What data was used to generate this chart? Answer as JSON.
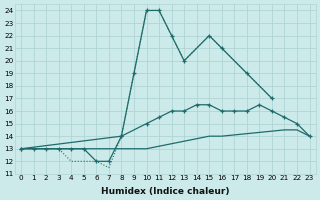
{
  "xlabel": "Humidex (Indice chaleur)",
  "xlim": [
    -0.5,
    23.5
  ],
  "ylim": [
    11,
    24.5
  ],
  "yticks": [
    11,
    12,
    13,
    14,
    15,
    16,
    17,
    18,
    19,
    20,
    21,
    22,
    23,
    24
  ],
  "xticks": [
    0,
    1,
    2,
    3,
    4,
    5,
    6,
    7,
    8,
    9,
    10,
    11,
    12,
    13,
    14,
    15,
    16,
    17,
    18,
    19,
    20,
    21,
    22,
    23
  ],
  "bg_color": "#cdeaea",
  "grid_color": "#b0d4d4",
  "line_color": "#1e6b6b",
  "series1_x": [
    0,
    1,
    2,
    3,
    4,
    5,
    6,
    7,
    8,
    9,
    10,
    11,
    12,
    13,
    15,
    16,
    18,
    20
  ],
  "series1_y": [
    13,
    13,
    13,
    13,
    13,
    13,
    12,
    12,
    14,
    19,
    24,
    24,
    22,
    20,
    22,
    21,
    19,
    17
  ],
  "series2_x": [
    0,
    2,
    3,
    4,
    5,
    6,
    7,
    8,
    9,
    10,
    11,
    12,
    13,
    15,
    16,
    18,
    20
  ],
  "series2_y": [
    13,
    13,
    13,
    12,
    12,
    12,
    11.5,
    14,
    19,
    24,
    24,
    22,
    20,
    22,
    21,
    19,
    17
  ],
  "series3_x": [
    0,
    8,
    10,
    11,
    12,
    13,
    14,
    15,
    16,
    17,
    18,
    19,
    20,
    21,
    22,
    23
  ],
  "series3_y": [
    13,
    14,
    15,
    15.5,
    16,
    16,
    16.5,
    16.5,
    16,
    16,
    16,
    16.5,
    16,
    15.5,
    15,
    14
  ],
  "series4_x": [
    0,
    10,
    11,
    12,
    13,
    14,
    15,
    16,
    17,
    18,
    19,
    20,
    21,
    22,
    23
  ],
  "series4_y": [
    13,
    13,
    13.2,
    13.4,
    13.6,
    13.8,
    14,
    14,
    14.1,
    14.2,
    14.3,
    14.4,
    14.5,
    14.5,
    14
  ]
}
